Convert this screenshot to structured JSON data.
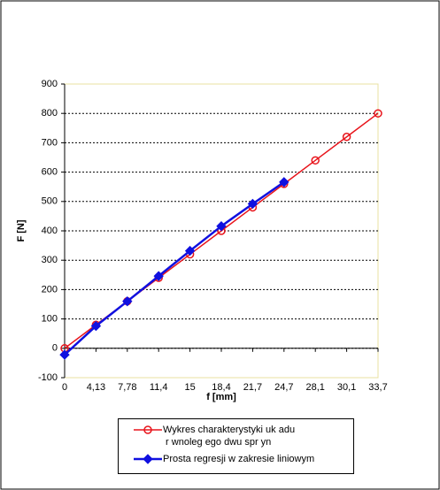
{
  "chart_data": {
    "type": "line",
    "xlabel": "f [mm]",
    "ylabel": "F [N]",
    "categories": [
      "0",
      "4,13",
      "7,78",
      "11,4",
      "15",
      "18,4",
      "21,7",
      "24,7",
      "28,1",
      "30,1",
      "33,7"
    ],
    "series": [
      {
        "name": "Wykres charakterystyki uk adu\n r wnoleg ego dwu spr yn",
        "color": "#e8141b",
        "marker": "circle",
        "values": [
          0,
          80,
          160,
          240,
          320,
          400,
          480,
          560,
          640,
          720,
          800
        ]
      },
      {
        "name": "Prosta regresji w zakresie liniowym",
        "color": "#1010e0",
        "marker": "diamond",
        "values": [
          -22,
          76,
          160,
          246,
          332,
          416,
          492,
          566,
          null,
          null,
          null
        ]
      }
    ],
    "ylim": [
      -100,
      900
    ],
    "yticks": [
      -100,
      0,
      100,
      200,
      300,
      400,
      500,
      600,
      700,
      800,
      900
    ],
    "grid": true
  }
}
